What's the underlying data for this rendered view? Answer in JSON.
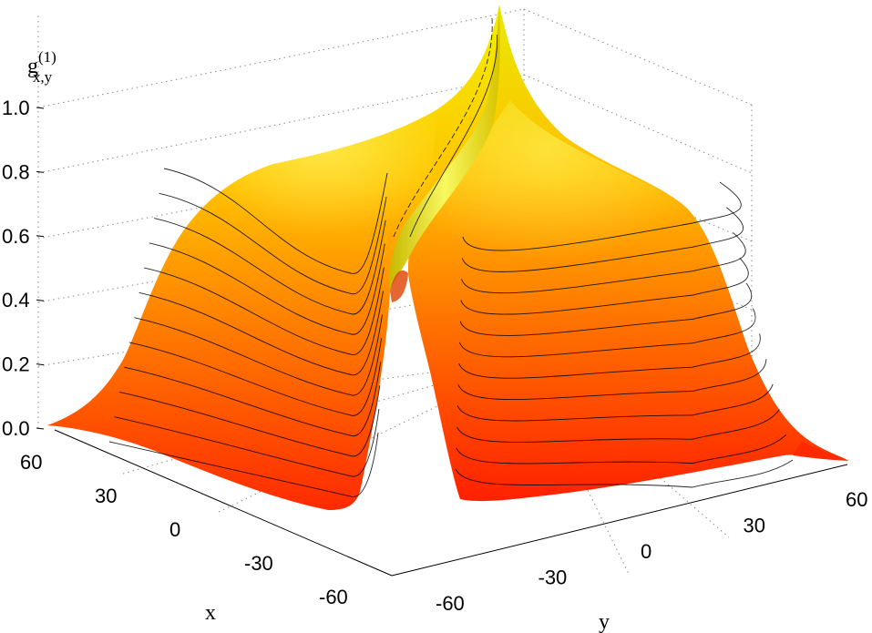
{
  "chart_data": {
    "type": "surface",
    "zlabel": {
      "main": "g",
      "sup": "(1)",
      "sub": "x,y"
    },
    "xlabel": "x",
    "ylabel": "y",
    "zlim": [
      0.0,
      1.0
    ],
    "xlim": [
      -60,
      60
    ],
    "ylim": [
      -60,
      60
    ],
    "z_ticks": [
      "0.0",
      "0.2",
      "0.4",
      "0.6",
      "0.8",
      "1.0"
    ],
    "x_ticks": [
      "60",
      "30",
      "0",
      "-30",
      "-60"
    ],
    "y_ticks": [
      "-60",
      "-30",
      "0",
      "30",
      "60"
    ],
    "grid": true,
    "colormap": [
      "#ff2a00",
      "#ff8c00",
      "#ffd200",
      "#f4f400"
    ],
    "surface_shape": "peak of 1.0 along the diagonal x = y, dropping to a plateau near 0.8 and to about 0.0 away from it",
    "contour_levels": 12
  }
}
